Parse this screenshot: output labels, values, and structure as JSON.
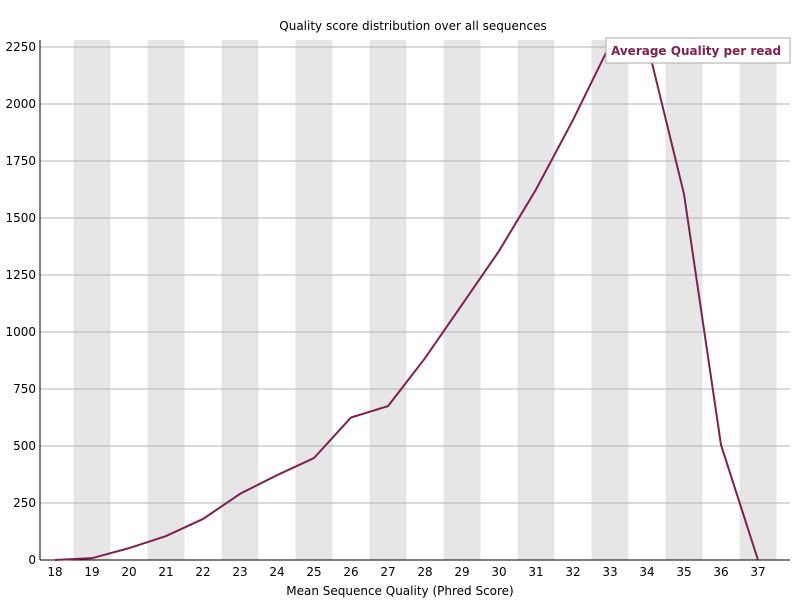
{
  "chart_data": {
    "type": "line",
    "title": "Quality score distribution over all sequences",
    "xlabel": "Mean Sequence Quality (Phred Score)",
    "ylabel": "",
    "x": [
      18,
      19,
      20,
      21,
      22,
      23,
      24,
      25,
      26,
      27,
      28,
      29,
      30,
      31,
      32,
      33,
      34,
      35,
      36,
      37
    ],
    "xlim": [
      18,
      37
    ],
    "ylim": [
      0,
      2250
    ],
    "yticks": [
      0,
      250,
      500,
      750,
      1000,
      1250,
      1500,
      1750,
      2000,
      2250
    ],
    "series": [
      {
        "name": "Average Quality per read",
        "color": "#7f2050",
        "values": [
          0,
          8,
          52,
          105,
          180,
          290,
          372,
          447,
          625,
          675,
          885,
          1120,
          1355,
          1625,
          1930,
          2260,
          2270,
          1605,
          505,
          0
        ]
      }
    ],
    "grid": true,
    "banded_background": true,
    "band_color": "#e6e6e6",
    "legend_position": "top-right"
  }
}
